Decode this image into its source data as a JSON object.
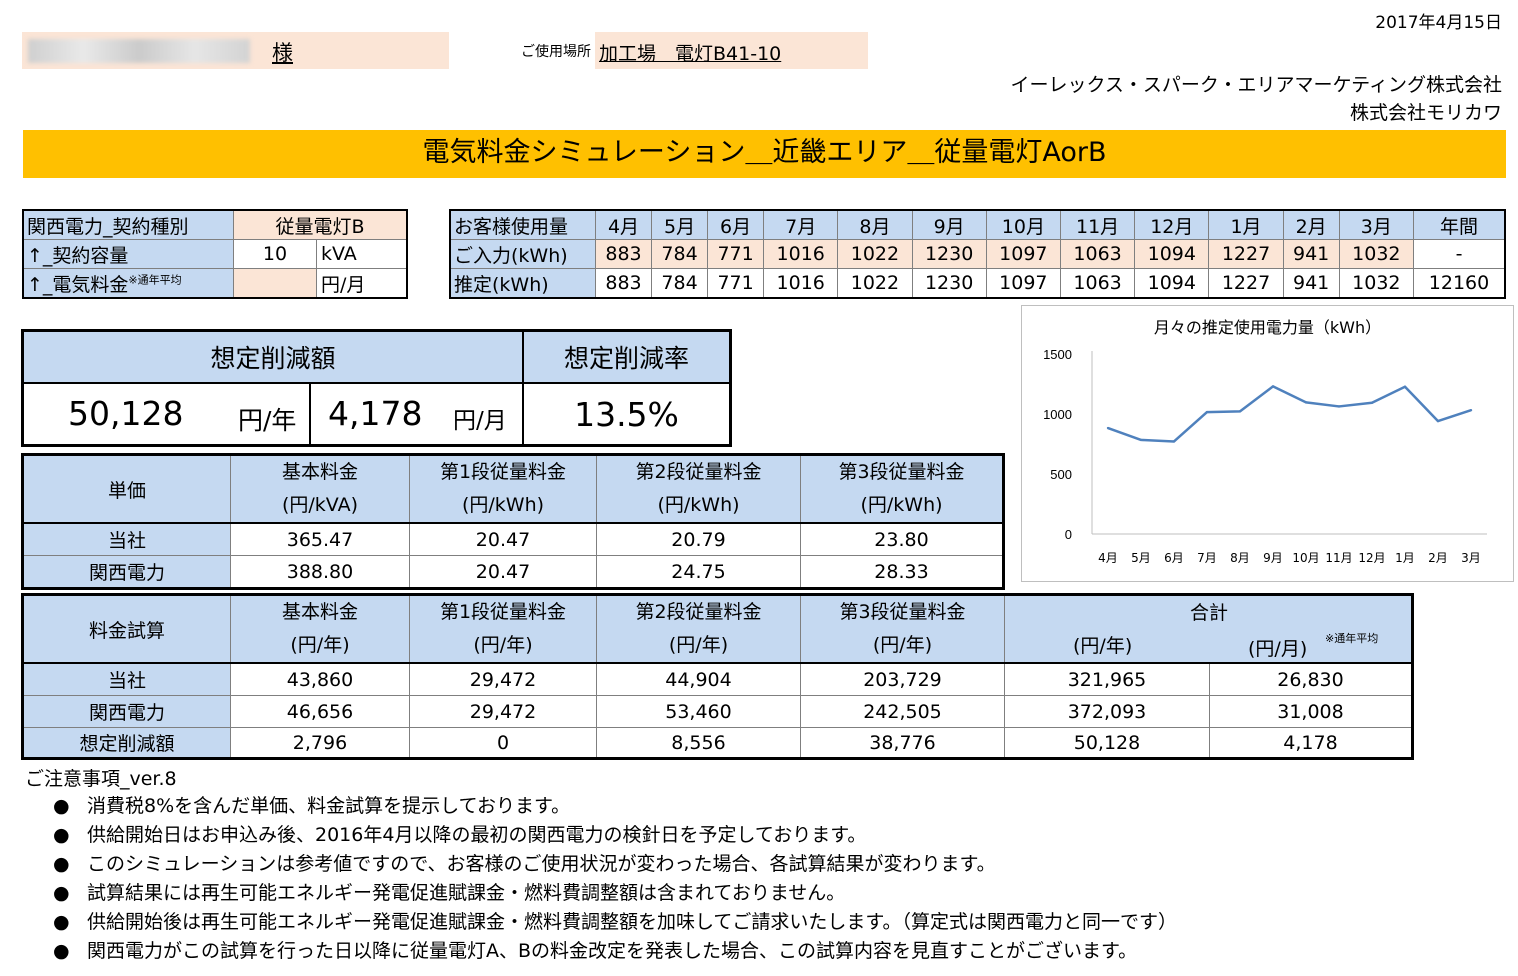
{
  "header": {
    "date": "2017年4月15日",
    "customer_suffix": "様",
    "location_label": "ご使用場所",
    "location_value": "加工場　電灯B41-10",
    "company1": "イーレックス・スパーク・エリアマーケティング株式会社",
    "company2": "株式会社モリカワ"
  },
  "title": "電気料金シミュレーション＿近畿エリア＿従量電灯AorB",
  "contract": {
    "row1_label": "関西電力_契約種別",
    "row1_value": "従量電灯B",
    "row2_label": "↑_契約容量",
    "row2_value": "10",
    "row2_unit": "kVA",
    "row3_label": "↑_電気料金",
    "row3_note": "※通年平均",
    "row3_unit": "円/月"
  },
  "usage": {
    "header_label": "お客様使用量",
    "months": [
      "4月",
      "5月",
      "6月",
      "7月",
      "8月",
      "9月",
      "10月",
      "11月",
      "12月",
      "1月",
      "2月",
      "3月",
      "年間"
    ],
    "input_label": "ご入力(kWh)",
    "input_values": [
      "883",
      "784",
      "771",
      "1016",
      "1022",
      "1230",
      "1097",
      "1063",
      "1094",
      "1227",
      "941",
      "1032",
      "-"
    ],
    "est_label": "推定(kWh)",
    "est_values": [
      "883",
      "784",
      "771",
      "1016",
      "1022",
      "1230",
      "1097",
      "1063",
      "1094",
      "1227",
      "941",
      "1032",
      "12160"
    ]
  },
  "summary": {
    "reduction_label": "想定削減額",
    "rate_label": "想定削減率",
    "annual_value": "50,128",
    "annual_unit": "円/年",
    "monthly_value": "4,178",
    "monthly_unit": "円/月",
    "rate_value": "13.5%"
  },
  "unit_price": {
    "label": "単価",
    "columns": [
      {
        "name": "基本料金",
        "unit": "(円/kVA)"
      },
      {
        "name": "第1段従量料金",
        "unit": "(円/kWh)"
      },
      {
        "name": "第2段従量料金",
        "unit": "(円/kWh)"
      },
      {
        "name": "第3段従量料金",
        "unit": "(円/kWh)"
      }
    ],
    "rows": [
      {
        "label": "当社",
        "values": [
          "365.47",
          "20.47",
          "20.79",
          "23.80"
        ]
      },
      {
        "label": "関西電力",
        "values": [
          "388.80",
          "20.47",
          "24.75",
          "28.33"
        ]
      }
    ]
  },
  "fee_calc": {
    "label": "料金試算",
    "columns": [
      {
        "name": "基本料金",
        "unit": "(円/年)"
      },
      {
        "name": "第1段従量料金",
        "unit": "(円/年)"
      },
      {
        "name": "第2段従量料金",
        "unit": "(円/年)"
      },
      {
        "name": "第3段従量料金",
        "unit": "(円/年)"
      }
    ],
    "total_label": "合計",
    "total_unit_year": "(円/年)",
    "total_unit_month": "(円/月)",
    "total_note": "※通年平均",
    "rows": [
      {
        "label": "当社",
        "values": [
          "43,860",
          "29,472",
          "44,904",
          "203,729",
          "321,965",
          "26,830"
        ]
      },
      {
        "label": "関西電力",
        "values": [
          "46,656",
          "29,472",
          "53,460",
          "242,505",
          "372,093",
          "31,008"
        ]
      },
      {
        "label": "想定削減額",
        "values": [
          "2,796",
          "0",
          "8,556",
          "38,776",
          "50,128",
          "4,178"
        ]
      }
    ]
  },
  "notes": {
    "title": "ご注意事項_ver.8",
    "bullet": "●",
    "items": [
      "消費税8%を含んだ単価、料金試算を提示しております。",
      "供給開始日はお申込み後、2016年4月以降の最初の関西電力の検針日を予定しております。",
      "このシミュレーションは参考値ですので、お客様のご使用状況が変わった場合、各試算結果が変わります。",
      "試算結果には再生可能エネルギー発電促進賦課金・燃料費調整額は含まれておりません。",
      "供給開始後は再生可能エネルギー発電促進賦課金・燃料費調整額を加味してご請求いたします。（算定式は関西電力と同一です）",
      "関西電力がこの試算を行った日以降に従量電灯A、Bの料金改定を発表した場合、この試算内容を見直すことがございます。"
    ]
  },
  "chart_data": {
    "type": "line",
    "title": "月々の推定使用電力量（kWh）",
    "categories": [
      "4月",
      "5月",
      "6月",
      "7月",
      "8月",
      "9月",
      "10月",
      "11月",
      "12月",
      "1月",
      "2月",
      "3月"
    ],
    "series": [
      {
        "values": [
          883,
          784,
          771,
          1016,
          1022,
          1230,
          1097,
          1063,
          1094,
          1227,
          941,
          1032
        ],
        "color": "#4f81bd"
      }
    ],
    "yticks": [
      "1500",
      "1000",
      "500",
      "0"
    ],
    "ylim": [
      0,
      1500
    ],
    "grid": false,
    "legend": "none"
  }
}
